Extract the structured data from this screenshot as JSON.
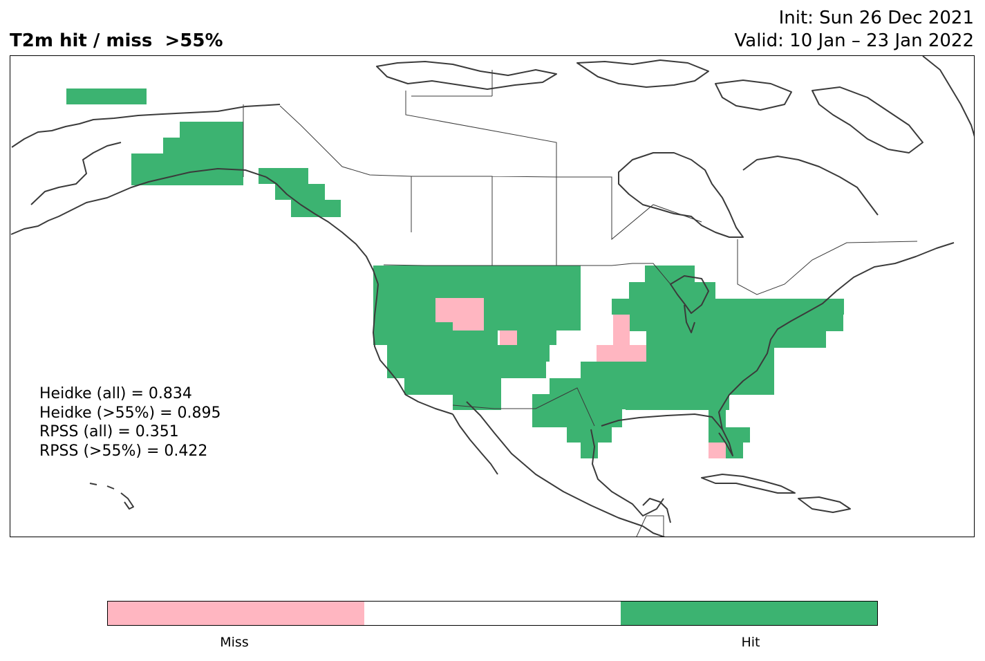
{
  "title": "T2m hit / miss  >55%",
  "init": "Init: Sun 26 Dec 2021",
  "valid": "Valid: 10 Jan – 23 Jan 2022",
  "stats": {
    "heidke_all": "Heidke (all) = 0.834",
    "heidke_55": "Heidke (>55%) = 0.895",
    "rpss_all": "RPSS (all) = 0.351",
    "rpss_55": "RPSS (>55%) = 0.422"
  },
  "colorbar": {
    "colors": [
      "#ffb6c1",
      "#ffffff",
      "#3cb371"
    ],
    "labels": {
      "miss": "Miss",
      "hit": "Hit"
    }
  },
  "colors": {
    "hit": "#3cb371",
    "miss": "#ffb6c1",
    "coast": "#3a3a3a",
    "frame": "#000000"
  }
}
